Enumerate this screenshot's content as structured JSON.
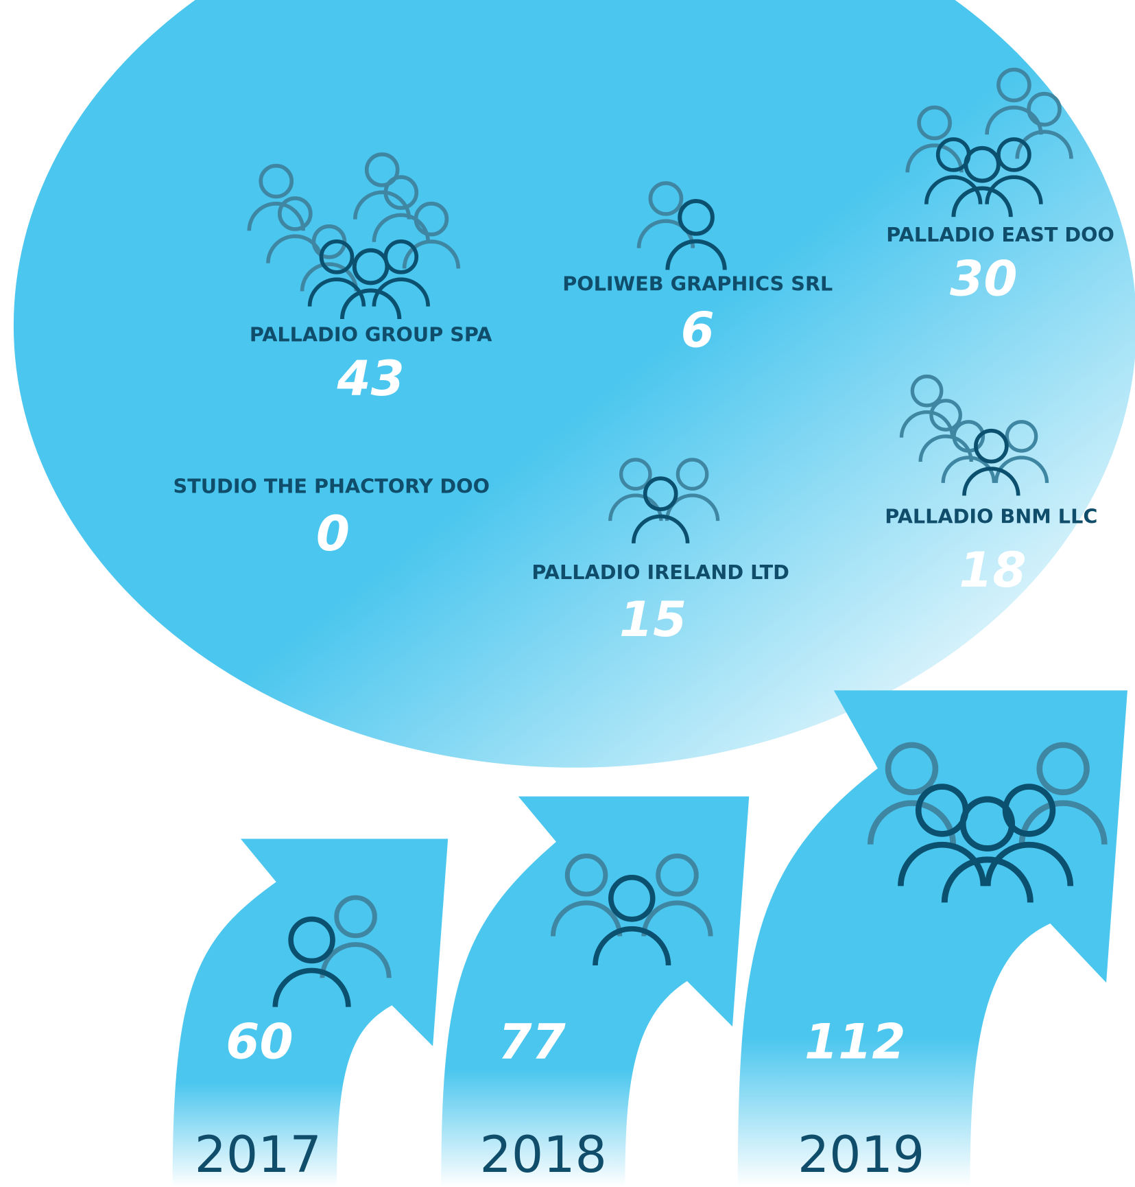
{
  "companies": [
    {
      "name": "PALLADIO GROUP SPA",
      "value": "43"
    },
    {
      "name": "POLIWEB GRAPHICS SRL",
      "value": "6"
    },
    {
      "name": "PALLADIO EAST DOO",
      "value": "30"
    },
    {
      "name": "STUDIO THE PHACTORY DOO",
      "value": "0"
    },
    {
      "name": "PALLADIO IRELAND LTD",
      "value": "15"
    },
    {
      "name": "PALLADIO BNM LLC",
      "value": "18"
    }
  ],
  "years": [
    {
      "year": "2017",
      "value": "60"
    },
    {
      "year": "2018",
      "value": "77"
    },
    {
      "year": "2019",
      "value": "112"
    }
  ]
}
